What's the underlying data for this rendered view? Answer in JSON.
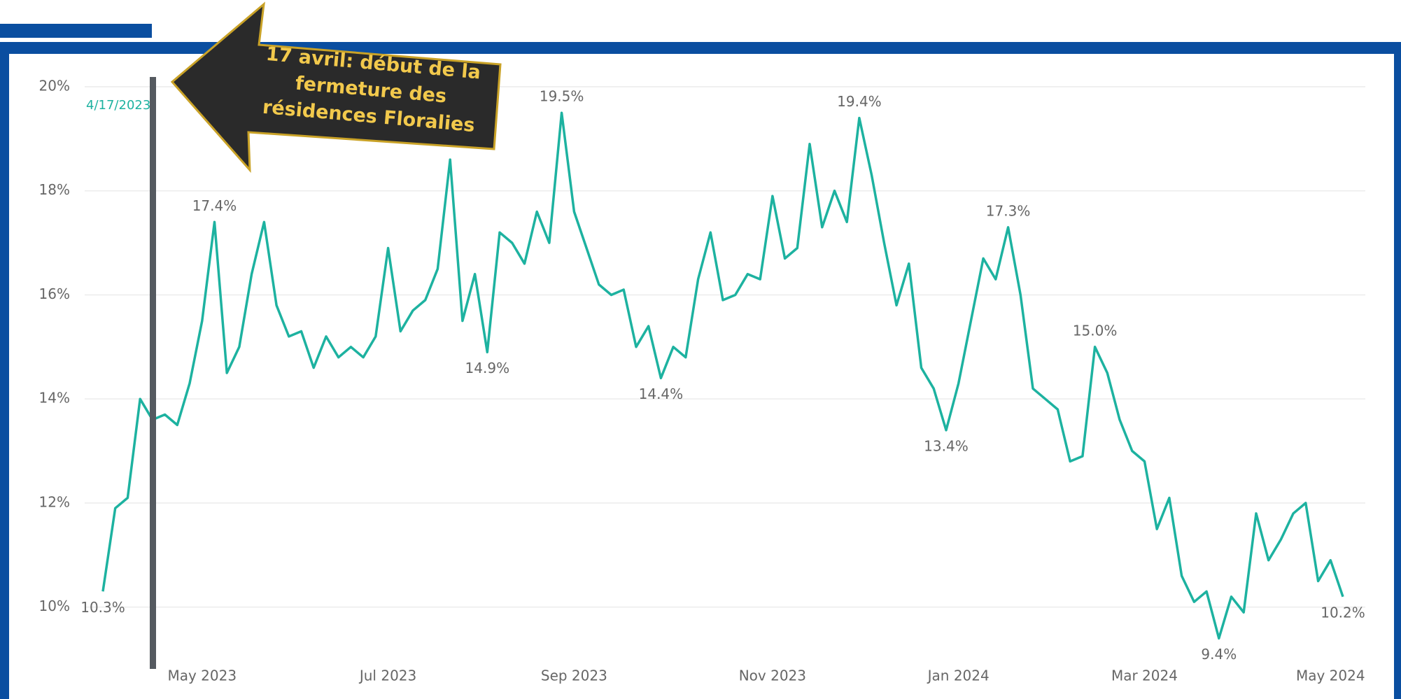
{
  "chart_data": {
    "type": "line",
    "categories": [
      null,
      null,
      null,
      null,
      null,
      null,
      null,
      null,
      "May 2023",
      null,
      null,
      null,
      null,
      null,
      null,
      null,
      null,
      null,
      null,
      null,
      null,
      null,
      null,
      "Jul 2023",
      null,
      null,
      null,
      null,
      null,
      null,
      null,
      null,
      null,
      null,
      null,
      null,
      null,
      null,
      "Sep 2023",
      null,
      null,
      null,
      null,
      null,
      null,
      null,
      null,
      null,
      null,
      null,
      null,
      null,
      null,
      null,
      "Nov 2023",
      null,
      null,
      null,
      null,
      null,
      null,
      null,
      null,
      null,
      null,
      null,
      null,
      null,
      null,
      "Jan 2024",
      null,
      null,
      null,
      null,
      null,
      null,
      null,
      null,
      null,
      null,
      null,
      null,
      null,
      null,
      "Mar 2024",
      null,
      null,
      null,
      null,
      null,
      null,
      null,
      null,
      null,
      null,
      null,
      null,
      null,
      null,
      "May 2024",
      null
    ],
    "series": [
      {
        "color": "#1db2a0",
        "values": [
          10.3,
          11.9,
          12.1,
          14.0,
          13.6,
          13.7,
          13.5,
          14.3,
          15.5,
          17.4,
          14.5,
          15.0,
          16.4,
          17.4,
          15.8,
          15.2,
          15.3,
          14.6,
          15.2,
          14.8,
          15.0,
          14.8,
          15.2,
          16.9,
          15.3,
          15.7,
          15.9,
          16.5,
          18.6,
          15.5,
          16.4,
          14.9,
          17.2,
          17.0,
          16.6,
          17.6,
          17.0,
          19.5,
          17.6,
          16.9,
          16.2,
          16.0,
          16.1,
          15.0,
          15.4,
          14.4,
          15.0,
          14.8,
          16.3,
          17.2,
          15.9,
          16.0,
          16.4,
          16.3,
          17.9,
          16.7,
          16.9,
          18.9,
          17.3,
          18.0,
          17.4,
          19.4,
          18.3,
          17.0,
          15.8,
          16.6,
          14.6,
          14.2,
          13.4,
          14.3,
          15.5,
          16.7,
          16.3,
          17.3,
          16.0,
          14.2,
          14.0,
          13.8,
          12.8,
          12.9,
          15.0,
          14.5,
          13.6,
          13.0,
          12.8,
          11.5,
          12.1,
          10.6,
          10.1,
          10.3,
          9.4,
          10.2,
          9.9,
          11.8,
          10.9,
          11.3,
          11.8,
          12.0,
          10.5,
          10.9,
          10.2
        ],
        "value_labels": [
          "10.3%",
          null,
          null,
          null,
          null,
          null,
          null,
          null,
          null,
          "17.4%",
          null,
          null,
          null,
          null,
          null,
          null,
          null,
          null,
          null,
          null,
          null,
          null,
          null,
          null,
          null,
          null,
          null,
          null,
          null,
          null,
          null,
          "14.9%",
          null,
          null,
          null,
          null,
          null,
          "19.5%",
          null,
          null,
          null,
          null,
          null,
          null,
          null,
          "14.4%",
          null,
          null,
          null,
          null,
          null,
          null,
          null,
          null,
          null,
          null,
          null,
          null,
          null,
          null,
          null,
          "19.4%",
          null,
          null,
          null,
          null,
          null,
          null,
          "13.4%",
          null,
          null,
          null,
          null,
          "17.3%",
          null,
          null,
          null,
          null,
          null,
          null,
          "15.0%",
          null,
          null,
          null,
          null,
          null,
          null,
          null,
          null,
          null,
          "9.4%",
          null,
          null,
          null,
          null,
          null,
          null,
          null,
          null,
          null,
          "10.2%"
        ]
      }
    ],
    "ylim": [
      9,
      20
    ],
    "yticks": [
      {
        "value": 10,
        "label": "10%"
      },
      {
        "value": 12,
        "label": "12%"
      },
      {
        "value": 14,
        "label": "14%"
      },
      {
        "value": 16,
        "label": "16%"
      },
      {
        "value": 18,
        "label": "18%"
      },
      {
        "value": 20,
        "label": "20%"
      }
    ],
    "grid": true,
    "reference_label": "4/17/2023",
    "annotation": [
      "17 avril:  début de la",
      "fermeture  des",
      "résidences Floralies"
    ]
  }
}
